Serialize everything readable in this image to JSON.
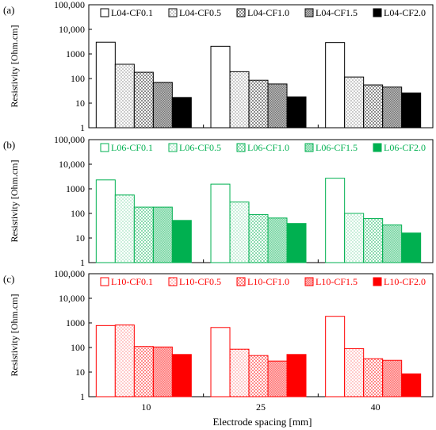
{
  "figure": {
    "xlabel": "Electrode spacing [mm]",
    "categories": [
      "10",
      "25",
      "40"
    ]
  },
  "chart_data": [
    {
      "type": "bar",
      "panel_label": "(a)",
      "color": "#000000",
      "ylabel": "Resistivity [Ohm.cm]",
      "xlabel": "",
      "yscale": "log",
      "ylim": [
        1,
        100000
      ],
      "yticks": [
        "1",
        "10",
        "100",
        "1000",
        "10,000",
        "100,000"
      ],
      "categories": [
        "10",
        "25",
        "40"
      ],
      "legend_position": "top",
      "series": [
        {
          "name": "L04-CF0.1",
          "fill": "white",
          "values": [
            3000,
            2050,
            2900
          ]
        },
        {
          "name": "L04-CF0.5",
          "fill": "dots",
          "values": [
            380,
            190,
            115
          ]
        },
        {
          "name": "L04-CF1.0",
          "fill": "checker",
          "values": [
            180,
            85,
            55
          ]
        },
        {
          "name": "L04-CF1.5",
          "fill": "dense",
          "values": [
            70,
            60,
            45
          ]
        },
        {
          "name": "L04-CF2.0",
          "fill": "solid",
          "values": [
            17,
            18,
            26
          ]
        }
      ]
    },
    {
      "type": "bar",
      "panel_label": "(b)",
      "color": "#00b050",
      "ylabel": "Resistivity [Ohm.cm]",
      "xlabel": "",
      "yscale": "log",
      "ylim": [
        1,
        100000
      ],
      "yticks": [
        "1",
        "10",
        "100",
        "1000",
        "10,000",
        "100,000"
      ],
      "categories": [
        "10",
        "25",
        "40"
      ],
      "legend_position": "top",
      "series": [
        {
          "name": "L06-CF0.1",
          "fill": "white",
          "values": [
            2300,
            1550,
            2700
          ]
        },
        {
          "name": "L06-CF0.5",
          "fill": "dots",
          "values": [
            560,
            290,
            100
          ]
        },
        {
          "name": "L06-CF1.0",
          "fill": "checker",
          "values": [
            180,
            90,
            62
          ]
        },
        {
          "name": "L06-CF1.5",
          "fill": "dense",
          "values": [
            180,
            65,
            34
          ]
        },
        {
          "name": "L06-CF2.0",
          "fill": "solid",
          "values": [
            52,
            39,
            16
          ]
        }
      ]
    },
    {
      "type": "bar",
      "panel_label": "(c)",
      "color": "#ff0000",
      "ylabel": "Resistivity [Ohm.cm]",
      "xlabel": "Electrode spacing [mm]",
      "yscale": "log",
      "ylim": [
        1,
        100000
      ],
      "yticks": [
        "1",
        "10",
        "100",
        "1000",
        "10,000",
        "100,000"
      ],
      "categories": [
        "10",
        "25",
        "40"
      ],
      "legend_position": "top",
      "series": [
        {
          "name": "L10-CF0.1",
          "fill": "white",
          "values": [
            780,
            650,
            1850
          ]
        },
        {
          "name": "L10-CF0.5",
          "fill": "dots",
          "values": [
            820,
            85,
            90
          ]
        },
        {
          "name": "L10-CF1.0",
          "fill": "checker",
          "values": [
            110,
            47,
            35
          ]
        },
        {
          "name": "L10-CF1.5",
          "fill": "dense",
          "values": [
            105,
            28,
            30
          ]
        },
        {
          "name": "L10-CF2.0",
          "fill": "solid",
          "values": [
            52,
            52,
            8.5
          ]
        }
      ]
    }
  ]
}
